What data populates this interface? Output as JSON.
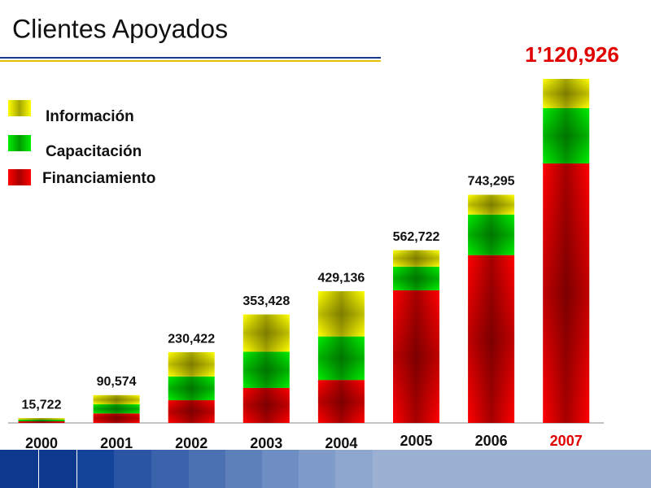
{
  "chart_data": {
    "type": "bar",
    "stacked": true,
    "title": "Clientes Apoyados",
    "categories": [
      "2000",
      "2001",
      "2002",
      "2003",
      "2004",
      "2005",
      "2006",
      "2007"
    ],
    "series": [
      {
        "name": "Financiamiento",
        "color": "#ff0000",
        "values": [
          5442,
          31054,
          74064,
          114127,
          140017,
          432155,
          546770,
          845379
        ]
      },
      {
        "name": "Capacitación",
        "color": "#00ee00",
        "values": [
          5442,
          29760,
          77356,
          117811,
          141835,
          77237,
          132314,
          180149
        ]
      },
      {
        "name": "Información",
        "color": "#ffff00",
        "values": [
          4838,
          29760,
          79002,
          121490,
          147284,
          53330,
          64211,
          95398
        ]
      }
    ],
    "totals": [
      15722,
      90574,
      230422,
      353428,
      429136,
      562722,
      743295,
      1120926
    ],
    "value_labels": [
      "15,722",
      "90,574",
      "230,422",
      "353,428",
      "429,136",
      "562,722",
      "743,295",
      "1’120,926"
    ],
    "highlight_category": "2007",
    "highlight_color": "#e00000"
  }
}
